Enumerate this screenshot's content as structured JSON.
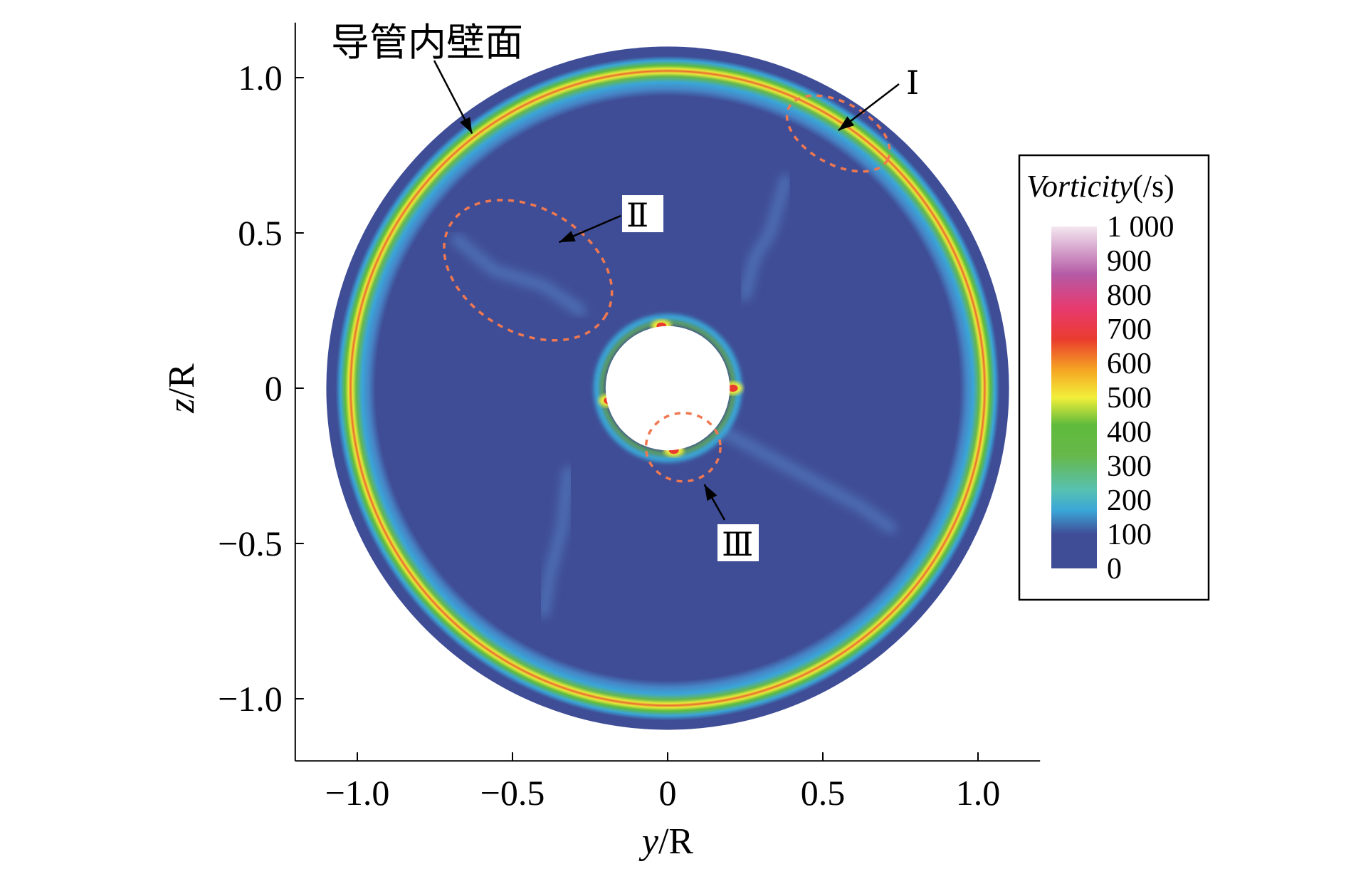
{
  "chart_data": {
    "type": "heatmap",
    "title": "",
    "xlabel_main": "y",
    "xlabel_unit": "/R",
    "ylabel_main": "z",
    "ylabel_unit": "/R",
    "xlim": [
      -1.2,
      1.2
    ],
    "ylim": [
      -1.2,
      1.2
    ],
    "x_ticks": [
      -1.0,
      -0.5,
      0,
      0.5,
      1.0
    ],
    "x_tick_labels": [
      "−1.0",
      "−0.5",
      "0",
      "0.5",
      "1.0"
    ],
    "y_ticks": [
      1.0,
      0.5,
      0,
      -0.5,
      -1.0
    ],
    "y_tick_labels": [
      "1.0",
      "0.5",
      "0",
      "−0.5",
      "−1.0"
    ],
    "field": {
      "quantity": "Vorticity",
      "unit": "(/s)",
      "outer_radius": 1.1,
      "inner_radius": 0.2,
      "wall_ring_radius": 1.02
    },
    "colorbar": {
      "title_main": "Vorticity",
      "title_unit": "(/s)",
      "range": [
        0,
        1000
      ],
      "levels": [
        1000,
        900,
        800,
        700,
        600,
        500,
        400,
        300,
        200,
        100,
        0
      ],
      "level_labels": [
        "1 000",
        "900",
        "800",
        "700",
        "600",
        "500",
        "400",
        "300",
        "200",
        "100",
        "0"
      ],
      "colors": [
        "#3f4d96",
        "#3aa6d8",
        "#57c1b0",
        "#66b84a",
        "#5fbb3c",
        "#f2ef3a",
        "#f5a623",
        "#ea3c2e",
        "#e83a6e",
        "#b55aa6",
        "#f4e8f0"
      ]
    },
    "annotations": [
      {
        "label": "导管内壁面",
        "target": [
          -0.63,
          0.82
        ]
      },
      {
        "label": "Ⅰ",
        "target": [
          0.55,
          0.83
        ],
        "ellipse_center": [
          0.55,
          0.82
        ],
        "ellipse_radii": [
          0.18,
          0.1
        ]
      },
      {
        "label": "Ⅱ",
        "target": [
          -0.35,
          0.47
        ],
        "ellipse_center": [
          -0.45,
          0.38
        ],
        "ellipse_radii": [
          0.29,
          0.2
        ]
      },
      {
        "label": "Ⅲ",
        "target": [
          0.1,
          -0.31
        ],
        "ellipse_center": [
          0.05,
          -0.19
        ],
        "ellipse_radii": [
          0.12,
          0.11
        ]
      }
    ],
    "grid": false,
    "legend": "right"
  }
}
